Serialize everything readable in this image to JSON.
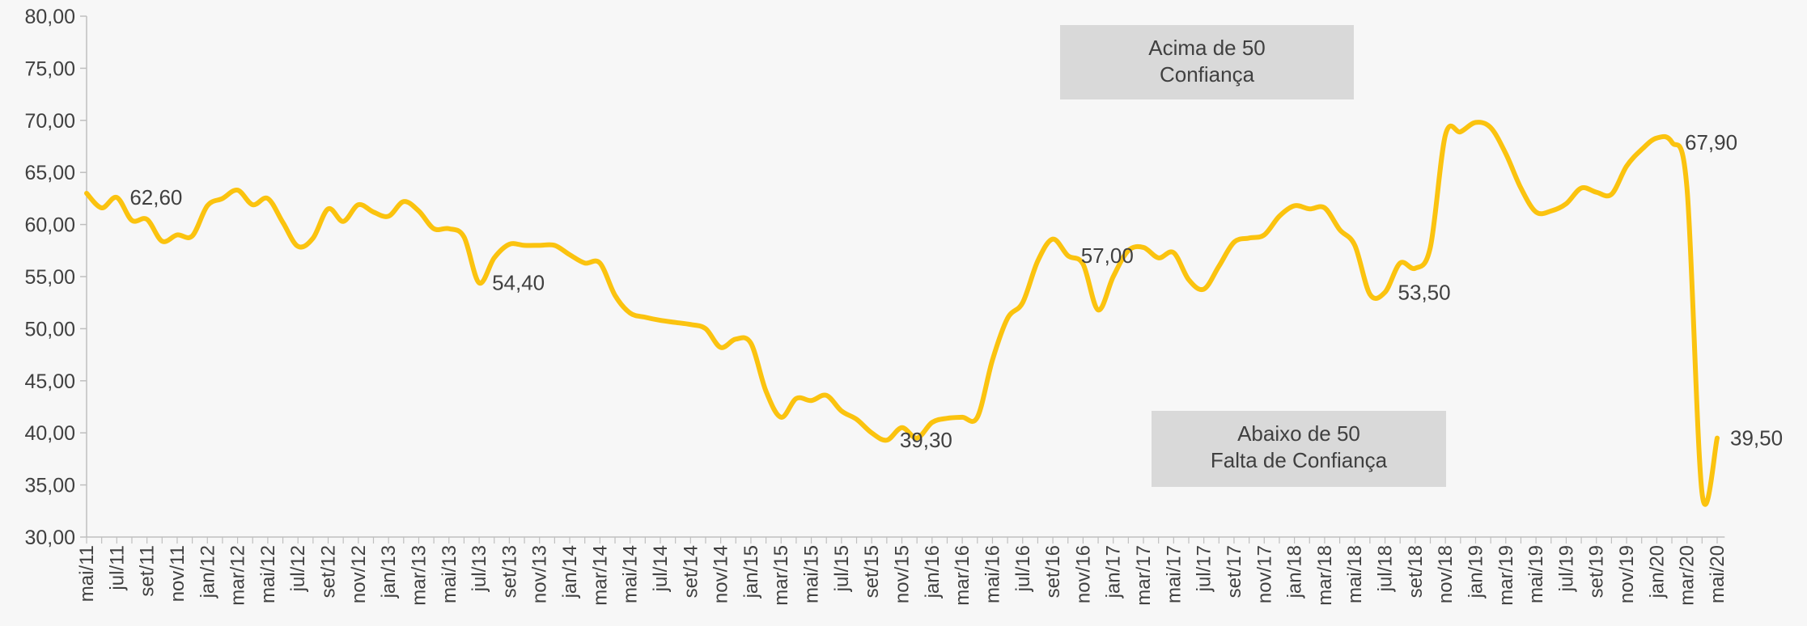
{
  "chart_data": {
    "type": "line",
    "categories": [
      "mai/11",
      null,
      "jul/11",
      null,
      "set/11",
      null,
      "nov/11",
      null,
      "jan/12",
      null,
      "mar/12",
      null,
      "mai/12",
      null,
      "jul/12",
      null,
      "set/12",
      null,
      "nov/12",
      null,
      "jan/13",
      null,
      "mar/13",
      null,
      "mai/13",
      null,
      "jul/13",
      null,
      "set/13",
      null,
      "nov/13",
      null,
      "jan/14",
      null,
      "mar/14",
      null,
      "mai/14",
      null,
      "jul/14",
      null,
      "set/14",
      null,
      "nov/14",
      null,
      "jan/15",
      null,
      "mar/15",
      null,
      "mai/15",
      null,
      "jul/15",
      null,
      "set/15",
      null,
      "nov/15",
      null,
      "jan/16",
      null,
      "mar/16",
      null,
      "mai/16",
      null,
      "jul/16",
      null,
      "set/16",
      null,
      "nov/16",
      null,
      "jan/17",
      null,
      "mar/17",
      null,
      "mai/17",
      null,
      "jul/17",
      null,
      "set/17",
      null,
      "nov/17",
      null,
      "jan/18",
      null,
      "mar/18",
      null,
      "mai/18",
      null,
      "jul/18",
      null,
      "set/18",
      null,
      "nov/18",
      null,
      "jan/19",
      null,
      "mar/19",
      null,
      "mai/19",
      null,
      "jul/19",
      null,
      "set/19",
      null,
      "nov/19",
      null,
      "jan/20",
      null,
      "mar/20",
      null,
      "mai/20"
    ],
    "series": [
      {
        "color": "#fbc30f",
        "values": [
          63.0,
          61.6,
          62.6,
          60.4,
          60.5,
          58.4,
          59.0,
          58.9,
          61.8,
          62.5,
          63.3,
          61.9,
          62.5,
          60.2,
          57.9,
          58.7,
          61.5,
          60.3,
          61.9,
          61.2,
          60.8,
          62.2,
          61.3,
          59.6,
          59.6,
          58.8,
          54.4,
          56.8,
          58.1,
          58.0,
          58.0,
          58.0,
          57.1,
          56.3,
          56.3,
          53.2,
          51.5,
          51.1,
          50.8,
          50.6,
          50.4,
          50.0,
          48.2,
          49.0,
          48.6,
          44.0,
          41.5,
          43.3,
          43.1,
          43.6,
          42.1,
          41.3,
          40.0,
          39.3,
          40.5,
          39.5,
          41.0,
          41.4,
          41.5,
          41.5,
          47.0,
          51.0,
          52.5,
          56.5,
          58.6,
          57.0,
          56.2,
          51.8,
          55.0,
          57.5,
          57.8,
          56.8,
          57.3,
          54.7,
          53.8,
          56.0,
          58.3,
          58.7,
          59.0,
          60.8,
          61.8,
          61.5,
          61.6,
          59.5,
          58.0,
          53.3,
          53.5,
          56.3,
          55.8,
          57.8,
          68.6,
          68.9,
          69.8,
          69.3,
          66.8,
          63.5,
          61.2,
          61.3,
          62.0,
          63.5,
          63.1,
          62.9,
          65.6,
          67.2,
          68.3,
          67.9,
          63.5,
          34.2,
          39.5
        ],
        "value_labels": [
          null,
          null,
          "62,60",
          null,
          null,
          null,
          null,
          null,
          null,
          null,
          null,
          null,
          null,
          null,
          null,
          null,
          null,
          null,
          null,
          null,
          null,
          null,
          null,
          null,
          null,
          null,
          "54,40",
          null,
          null,
          null,
          null,
          null,
          null,
          null,
          null,
          null,
          null,
          null,
          null,
          null,
          null,
          null,
          null,
          null,
          null,
          null,
          null,
          null,
          null,
          null,
          null,
          null,
          null,
          "39,30",
          null,
          null,
          null,
          null,
          null,
          null,
          null,
          null,
          null,
          null,
          null,
          "57,00",
          null,
          null,
          null,
          null,
          null,
          null,
          null,
          null,
          null,
          null,
          null,
          null,
          null,
          null,
          null,
          null,
          null,
          null,
          null,
          null,
          "53,50",
          null,
          null,
          null,
          null,
          null,
          null,
          null,
          null,
          null,
          null,
          null,
          null,
          null,
          null,
          null,
          null,
          null,
          null,
          "67,90",
          null,
          null,
          "39,50"
        ]
      }
    ],
    "ylim": [
      30,
      80
    ],
    "yticks": [
      {
        "value": 30,
        "label": "30,00"
      },
      {
        "value": 35,
        "label": "35,00"
      },
      {
        "value": 40,
        "label": "40,00"
      },
      {
        "value": 45,
        "label": "45,00"
      },
      {
        "value": 50,
        "label": "50,00"
      },
      {
        "value": 55,
        "label": "55,00"
      },
      {
        "value": 60,
        "label": "60,00"
      },
      {
        "value": 65,
        "label": "65,00"
      },
      {
        "value": 70,
        "label": "70,00"
      },
      {
        "value": 75,
        "label": "75,00"
      },
      {
        "value": 80,
        "label": "80,00"
      }
    ],
    "annotations": [
      {
        "lines": [
          "Acima de 50",
          "Confiança"
        ]
      },
      {
        "lines": [
          "Abaixo de 50",
          "Falta de Confiança"
        ]
      }
    ],
    "grid": false
  }
}
